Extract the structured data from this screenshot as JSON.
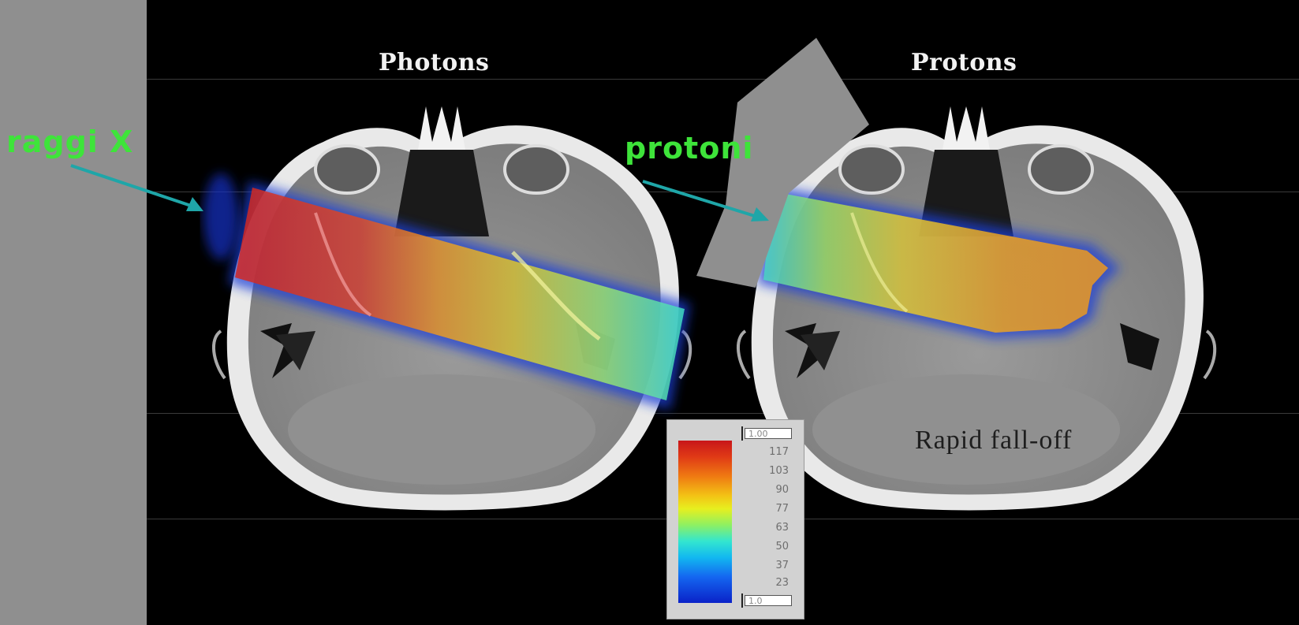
{
  "headings": {
    "photons": "Photons",
    "protons": "Protons"
  },
  "annotations": {
    "raggi_x": "raggi X",
    "protoni": "protoni",
    "rapid_falloff": "Rapid fall-off"
  },
  "colorbar": {
    "top_box": "1.00",
    "bottom_box": "1.0",
    "labels": [
      "117",
      "103",
      "90",
      "77",
      "63",
      "50",
      "37",
      "23"
    ]
  },
  "colors": {
    "annotation_green": "#3ee43a",
    "arrow_teal": "#1fa6a8",
    "dose_high": "#c8161a",
    "dose_low": "#0a22c8"
  }
}
